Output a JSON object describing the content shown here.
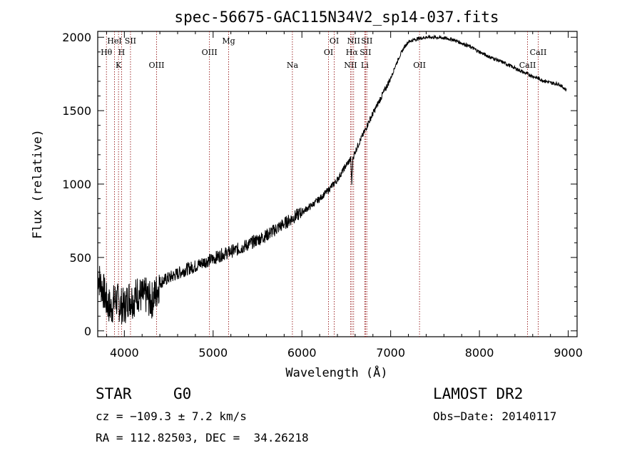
{
  "chart_data": {
    "type": "line",
    "title": "spec-56675-GAC115N34V2_sp14-037.fits",
    "xlabel": "Wavelength (Å)",
    "ylabel": "Flux (relative)",
    "xlim": [
      3700,
      9100
    ],
    "ylim": [
      -40,
      2040
    ],
    "xticks": [
      4000,
      5000,
      6000,
      7000,
      8000,
      9000
    ],
    "yticks": [
      0,
      500,
      1000,
      1500,
      2000
    ],
    "grid": false,
    "series": [
      {
        "x": [
          3700,
          3730,
          3760,
          3800,
          3850,
          3900,
          3950,
          4000,
          4050,
          4100,
          4150,
          4200,
          4250,
          4300,
          4350,
          4400,
          4500,
          4600,
          4700,
          4800,
          4900,
          5000,
          5100,
          5200,
          5300,
          5400,
          5500,
          5600,
          5700,
          5800,
          5900,
          6000,
          6100,
          6200,
          6300,
          6400,
          6450,
          6500,
          6550,
          6562,
          6575,
          6600,
          6650,
          6700,
          6750,
          6800,
          6850,
          6900,
          6950,
          7000,
          7050,
          7100,
          7150,
          7200,
          7300,
          7400,
          7500,
          7600,
          7700,
          7800,
          7900,
          8000,
          8100,
          8200,
          8300,
          8400,
          8500,
          8600,
          8700,
          8800,
          8900,
          8980
        ],
        "y": [
          400,
          320,
          280,
          200,
          150,
          220,
          180,
          160,
          230,
          210,
          260,
          230,
          240,
          200,
          250,
          330,
          360,
          390,
          420,
          440,
          470,
          490,
          520,
          540,
          560,
          590,
          620,
          650,
          690,
          730,
          770,
          810,
          850,
          900,
          960,
          1030,
          1080,
          1130,
          1170,
          1000,
          1180,
          1220,
          1290,
          1350,
          1420,
          1480,
          1540,
          1600,
          1660,
          1720,
          1800,
          1870,
          1930,
          1970,
          1990,
          2000,
          2000,
          1995,
          1985,
          1960,
          1935,
          1900,
          1870,
          1845,
          1820,
          1790,
          1760,
          1735,
          1710,
          1690,
          1680,
          1640
        ]
      }
    ],
    "annotations": [
      {
        "label": "Hθ",
        "x": 3798,
        "row": 2
      },
      {
        "label": "HeI",
        "x": 3889,
        "row": 1
      },
      {
        "label": "K",
        "x": 3934,
        "row": 3
      },
      {
        "label": "H",
        "x": 3969,
        "row": 2
      },
      {
        "label": "SII",
        "x": 4069,
        "row": 1
      },
      {
        "label": "OIII",
        "x": 4363,
        "row": 3
      },
      {
        "label": "OIII",
        "x": 4959,
        "row": 2
      },
      {
        "label": "Mg",
        "x": 5175,
        "row": 1
      },
      {
        "label": "Na",
        "x": 5893,
        "row": 3
      },
      {
        "label": "OI",
        "x": 6300,
        "row": 2
      },
      {
        "label": "OI",
        "x": 6364,
        "row": 1
      },
      {
        "label": "NII",
        "x": 6548,
        "row": 3
      },
      {
        "label": "Hα",
        "x": 6563,
        "row": 2
      },
      {
        "label": "NII",
        "x": 6583,
        "row": 1
      },
      {
        "label": "Li",
        "x": 6708,
        "row": 3
      },
      {
        "label": "SII",
        "x": 6716,
        "row": 2
      },
      {
        "label": "SII",
        "x": 6731,
        "row": 1
      },
      {
        "label": "OII",
        "x": 7325,
        "row": 3
      },
      {
        "label": "CaII",
        "x": 8542,
        "row": 3
      },
      {
        "label": "CaII",
        "x": 8662,
        "row": 2
      }
    ]
  },
  "info": {
    "object_class": "STAR",
    "subclass": "G0",
    "survey": "LAMOST DR2",
    "cz": "cz = −109.3 ± 7.2 km/s",
    "obs_date": "Obs−Date: 20140117",
    "coords": "RA = 112.82503, DEC =  34.26218"
  },
  "colors": {
    "spectrum": "#000000",
    "line_marker": "#8b0000",
    "axis": "#000000"
  }
}
